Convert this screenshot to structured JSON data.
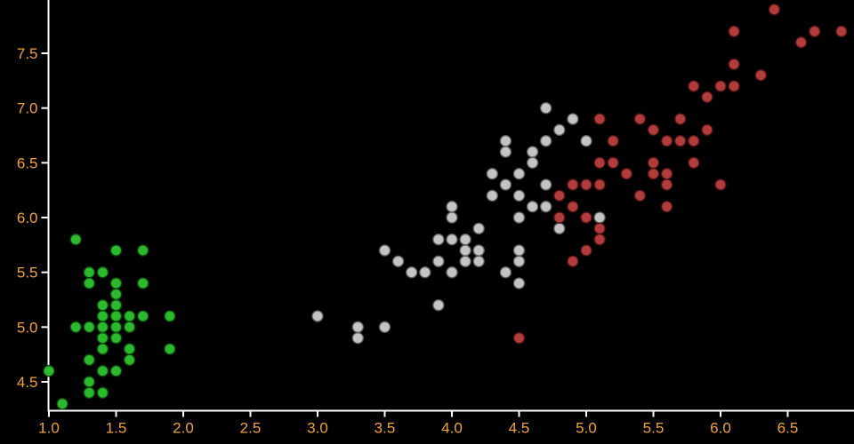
{
  "figure": {
    "background": "#000000",
    "axis_color": "#ffffff",
    "tick_color": "#ffffff",
    "tick_label_color": "#f2a13b"
  },
  "chart_data": {
    "type": "scatter",
    "title": "",
    "xlabel": "",
    "ylabel": "",
    "grid": false,
    "legend_position": "none",
    "xlim": [
      1.0,
      6.99
    ],
    "ylim": [
      4.24,
      7.99
    ],
    "x_ticks": [
      1.0,
      1.5,
      2.0,
      2.5,
      3.0,
      3.5,
      4.0,
      4.5,
      5.0,
      5.5,
      6.0,
      6.5
    ],
    "x_tick_labels": [
      "1.0",
      "1.5",
      "2.0",
      "2.5",
      "3.0",
      "3.5",
      "4.0",
      "4.5",
      "5.0",
      "5.5",
      "6.0",
      "6.5"
    ],
    "y_ticks": [
      4.5,
      5.0,
      5.5,
      6.0,
      6.5,
      7.0,
      7.5
    ],
    "y_tick_labels": [
      "4.5",
      "5.0",
      "5.5",
      "6.0",
      "6.5",
      "7.0",
      "7.5"
    ],
    "marker_radius": 6,
    "series": [
      {
        "name": "green",
        "color": "#2db92d",
        "stroke": "#0a4a0a",
        "points": [
          [
            1.4,
            5.1
          ],
          [
            1.4,
            4.9
          ],
          [
            1.3,
            4.7
          ],
          [
            1.5,
            4.6
          ],
          [
            1.4,
            5.0
          ],
          [
            1.7,
            5.4
          ],
          [
            1.4,
            4.6
          ],
          [
            1.5,
            5.0
          ],
          [
            1.4,
            4.4
          ],
          [
            1.5,
            4.9
          ],
          [
            1.5,
            5.4
          ],
          [
            1.6,
            4.8
          ],
          [
            1.4,
            4.8
          ],
          [
            1.1,
            4.3
          ],
          [
            1.2,
            5.8
          ],
          [
            1.5,
            5.7
          ],
          [
            1.3,
            5.4
          ],
          [
            1.4,
            5.1
          ],
          [
            1.7,
            5.7
          ],
          [
            1.5,
            5.1
          ],
          [
            1.7,
            5.4
          ],
          [
            1.5,
            5.1
          ],
          [
            1.0,
            4.6
          ],
          [
            1.7,
            5.1
          ],
          [
            1.9,
            4.8
          ],
          [
            1.6,
            5.0
          ],
          [
            1.6,
            5.0
          ],
          [
            1.5,
            5.2
          ],
          [
            1.4,
            5.2
          ],
          [
            1.6,
            4.7
          ],
          [
            1.6,
            4.8
          ],
          [
            1.5,
            5.4
          ],
          [
            1.5,
            5.2
          ],
          [
            1.4,
            5.5
          ],
          [
            1.5,
            4.9
          ],
          [
            1.2,
            5.0
          ],
          [
            1.3,
            5.5
          ],
          [
            1.4,
            4.9
          ],
          [
            1.3,
            4.4
          ],
          [
            1.5,
            5.1
          ],
          [
            1.3,
            5.0
          ],
          [
            1.3,
            4.5
          ],
          [
            1.3,
            4.4
          ],
          [
            1.6,
            5.0
          ],
          [
            1.9,
            5.1
          ],
          [
            1.4,
            4.8
          ],
          [
            1.6,
            5.1
          ],
          [
            1.4,
            4.6
          ],
          [
            1.5,
            5.3
          ],
          [
            1.4,
            5.0
          ]
        ]
      },
      {
        "name": "gray",
        "color": "#c4c4c4",
        "stroke": "#5e5e5e",
        "points": [
          [
            4.7,
            7.0
          ],
          [
            4.5,
            6.4
          ],
          [
            4.9,
            6.9
          ],
          [
            4.0,
            5.5
          ],
          [
            4.6,
            6.5
          ],
          [
            4.5,
            5.7
          ],
          [
            4.7,
            6.3
          ],
          [
            3.3,
            4.9
          ],
          [
            4.6,
            6.6
          ],
          [
            3.9,
            5.2
          ],
          [
            3.5,
            5.0
          ],
          [
            4.2,
            5.9
          ],
          [
            4.0,
            6.0
          ],
          [
            4.7,
            6.1
          ],
          [
            3.6,
            5.6
          ],
          [
            4.4,
            6.7
          ],
          [
            4.5,
            5.6
          ],
          [
            4.1,
            5.8
          ],
          [
            4.5,
            6.2
          ],
          [
            3.9,
            5.6
          ],
          [
            4.8,
            5.9
          ],
          [
            4.0,
            6.1
          ],
          [
            4.9,
            6.3
          ],
          [
            4.7,
            6.1
          ],
          [
            4.3,
            6.4
          ],
          [
            4.4,
            6.6
          ],
          [
            4.8,
            6.8
          ],
          [
            5.0,
            6.7
          ],
          [
            4.5,
            6.0
          ],
          [
            3.5,
            5.7
          ],
          [
            3.8,
            5.5
          ],
          [
            3.7,
            5.5
          ],
          [
            3.9,
            5.8
          ],
          [
            5.1,
            6.0
          ],
          [
            4.5,
            5.4
          ],
          [
            4.5,
            6.0
          ],
          [
            4.7,
            6.7
          ],
          [
            4.4,
            6.3
          ],
          [
            4.1,
            5.6
          ],
          [
            4.0,
            5.5
          ],
          [
            4.4,
            5.5
          ],
          [
            4.6,
            6.1
          ],
          [
            4.0,
            5.8
          ],
          [
            3.3,
            5.0
          ],
          [
            4.2,
            5.6
          ],
          [
            4.2,
            5.7
          ],
          [
            4.2,
            5.7
          ],
          [
            4.3,
            6.2
          ],
          [
            3.0,
            5.1
          ],
          [
            4.1,
            5.7
          ]
        ]
      },
      {
        "name": "red",
        "color": "#b13c3c",
        "stroke": "#4f1212",
        "points": [
          [
            6.0,
            6.3
          ],
          [
            5.1,
            5.8
          ],
          [
            5.9,
            7.1
          ],
          [
            5.6,
            6.3
          ],
          [
            5.8,
            6.5
          ],
          [
            6.6,
            7.6
          ],
          [
            4.5,
            4.9
          ],
          [
            6.3,
            7.3
          ],
          [
            5.8,
            6.7
          ],
          [
            6.1,
            7.2
          ],
          [
            5.1,
            6.5
          ],
          [
            5.3,
            6.4
          ],
          [
            5.5,
            6.8
          ],
          [
            5.0,
            5.7
          ],
          [
            5.1,
            5.8
          ],
          [
            5.3,
            6.4
          ],
          [
            5.5,
            6.5
          ],
          [
            6.7,
            7.7
          ],
          [
            6.9,
            7.7
          ],
          [
            5.0,
            6.0
          ],
          [
            5.7,
            6.9
          ],
          [
            4.9,
            5.6
          ],
          [
            6.7,
            7.7
          ],
          [
            4.9,
            6.3
          ],
          [
            5.7,
            6.7
          ],
          [
            6.0,
            7.2
          ],
          [
            4.8,
            6.2
          ],
          [
            4.9,
            6.1
          ],
          [
            5.6,
            6.4
          ],
          [
            5.8,
            7.2
          ],
          [
            6.1,
            7.4
          ],
          [
            6.4,
            7.9
          ],
          [
            5.6,
            6.4
          ],
          [
            5.1,
            6.3
          ],
          [
            5.6,
            6.1
          ],
          [
            6.1,
            7.7
          ],
          [
            5.6,
            6.3
          ],
          [
            5.5,
            6.4
          ],
          [
            4.8,
            6.0
          ],
          [
            5.4,
            6.9
          ],
          [
            5.6,
            6.7
          ],
          [
            5.1,
            6.9
          ],
          [
            5.1,
            5.8
          ],
          [
            5.9,
            6.8
          ],
          [
            5.7,
            6.7
          ],
          [
            5.2,
            6.7
          ],
          [
            5.0,
            6.3
          ],
          [
            5.2,
            6.5
          ],
          [
            5.4,
            6.2
          ],
          [
            5.1,
            5.9
          ]
        ]
      }
    ]
  }
}
